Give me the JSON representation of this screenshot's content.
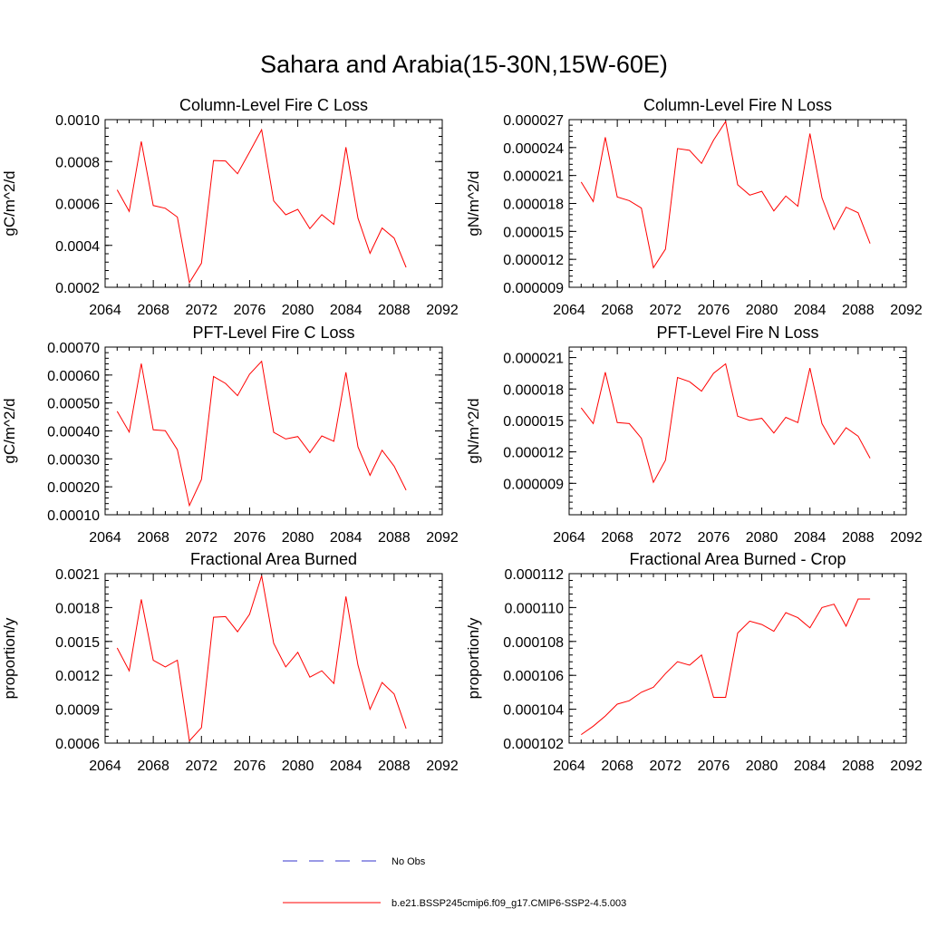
{
  "figure": {
    "title": "Sahara and Arabia(15-30N,15W-60E)"
  },
  "chart_data": [
    {
      "type": "line",
      "title": "Column-Level Fire C Loss",
      "ylabel": "gC/m^2/d",
      "xlim": [
        2064,
        2092
      ],
      "ylim": [
        0.0002,
        0.001
      ],
      "xticks": [
        "2064",
        "2068",
        "2072",
        "2076",
        "2080",
        "2084",
        "2088",
        "2092"
      ],
      "yticks": [
        "0.0002",
        "0.0004",
        "0.0006",
        "0.0008",
        "0.0010"
      ],
      "x": [
        2065,
        2066,
        2067,
        2068,
        2069,
        2070,
        2071,
        2072,
        2073,
        2074,
        2075,
        2076,
        2077,
        2078,
        2079,
        2080,
        2081,
        2082,
        2083,
        2084,
        2085,
        2086,
        2087,
        2088,
        2089
      ],
      "series": [
        {
          "name": "b.e21.BSSP245cmip6.f09_g17.CMIP6-SSP2-4.5.003",
          "color": "#ff0000",
          "values": [
            0.000665,
            0.000562,
            0.000896,
            0.00059,
            0.000577,
            0.000535,
            0.000222,
            0.000315,
            0.000805,
            0.000803,
            0.000742,
            0.000845,
            0.000952,
            0.000612,
            0.000546,
            0.000572,
            0.00048,
            0.000547,
            0.0005,
            0.000868,
            0.00053,
            0.000362,
            0.000483,
            0.000435,
            0.000295
          ]
        }
      ]
    },
    {
      "type": "line",
      "title": "Column-Level Fire N Loss",
      "ylabel": "gN/m^2/d",
      "xlim": [
        2064,
        2092
      ],
      "ylim": [
        9e-06,
        2.7e-05
      ],
      "xticks": [
        "2064",
        "2068",
        "2072",
        "2076",
        "2080",
        "2084",
        "2088",
        "2092"
      ],
      "yticks": [
        "0.000009",
        "0.000012",
        "0.000015",
        "0.000018",
        "0.000021",
        "0.000024",
        "0.000027"
      ],
      "x": [
        2065,
        2066,
        2067,
        2068,
        2069,
        2070,
        2071,
        2072,
        2073,
        2074,
        2075,
        2076,
        2077,
        2078,
        2079,
        2080,
        2081,
        2082,
        2083,
        2084,
        2085,
        2086,
        2087,
        2088,
        2089
      ],
      "series": [
        {
          "name": "b.e21.BSSP245cmip6.f09_g17.CMIP6-SSP2-4.5.003",
          "color": "#ff0000",
          "values": [
            2.03e-05,
            1.82e-05,
            2.51e-05,
            1.87e-05,
            1.83e-05,
            1.75e-05,
            1.11e-05,
            1.31e-05,
            2.39e-05,
            2.37e-05,
            2.23e-05,
            2.48e-05,
            2.68e-05,
            2e-05,
            1.89e-05,
            1.93e-05,
            1.72e-05,
            1.88e-05,
            1.77e-05,
            2.55e-05,
            1.86e-05,
            1.52e-05,
            1.76e-05,
            1.7e-05,
            1.37e-05
          ]
        }
      ]
    },
    {
      "type": "line",
      "title": "PFT-Level Fire C Loss",
      "ylabel": "gC/m^2/d",
      "xlim": [
        2064,
        2092
      ],
      "ylim": [
        0.0001,
        0.0007
      ],
      "xticks": [
        "2064",
        "2068",
        "2072",
        "2076",
        "2080",
        "2084",
        "2088",
        "2092"
      ],
      "yticks": [
        "0.00010",
        "0.00020",
        "0.00030",
        "0.00040",
        "0.00050",
        "0.00060",
        "0.00070"
      ],
      "x": [
        2065,
        2066,
        2067,
        2068,
        2069,
        2070,
        2071,
        2072,
        2073,
        2074,
        2075,
        2076,
        2077,
        2078,
        2079,
        2080,
        2081,
        2082,
        2083,
        2084,
        2085,
        2086,
        2087,
        2088,
        2089
      ],
      "series": [
        {
          "name": "b.e21.BSSP245cmip6.f09_g17.CMIP6-SSP2-4.5.003",
          "color": "#ff0000",
          "values": [
            0.00047,
            0.000396,
            0.000641,
            0.000404,
            0.000401,
            0.000333,
            0.000133,
            0.000226,
            0.000595,
            0.00057,
            0.000526,
            0.000603,
            0.000649,
            0.000395,
            0.000371,
            0.00038,
            0.000322,
            0.000382,
            0.000363,
            0.00061,
            0.000343,
            0.000241,
            0.000331,
            0.000274,
            0.000188
          ]
        }
      ]
    },
    {
      "type": "line",
      "title": "PFT-Level Fire N Loss",
      "ylabel": "gN/m^2/d",
      "xlim": [
        2064,
        2092
      ],
      "ylim": [
        6e-06,
        2.2e-05
      ],
      "xticks": [
        "2064",
        "2068",
        "2072",
        "2076",
        "2080",
        "2084",
        "2088",
        "2092"
      ],
      "yticks": [
        "0.000009",
        "0.000012",
        "0.000015",
        "0.000018",
        "0.000021"
      ],
      "x": [
        2065,
        2066,
        2067,
        2068,
        2069,
        2070,
        2071,
        2072,
        2073,
        2074,
        2075,
        2076,
        2077,
        2078,
        2079,
        2080,
        2081,
        2082,
        2083,
        2084,
        2085,
        2086,
        2087,
        2088,
        2089
      ],
      "series": [
        {
          "name": "b.e21.BSSP245cmip6.f09_g17.CMIP6-SSP2-4.5.003",
          "color": "#ff0000",
          "values": [
            1.62e-05,
            1.47e-05,
            1.96e-05,
            1.48e-05,
            1.47e-05,
            1.33e-05,
            9.1e-06,
            1.12e-05,
            1.91e-05,
            1.87e-05,
            1.78e-05,
            1.95e-05,
            2.04e-05,
            1.54e-05,
            1.5e-05,
            1.52e-05,
            1.38e-05,
            1.53e-05,
            1.48e-05,
            2e-05,
            1.47e-05,
            1.27e-05,
            1.43e-05,
            1.35e-05,
            1.14e-05
          ]
        }
      ]
    },
    {
      "type": "line",
      "title": "Fractional Area Burned",
      "ylabel": "proportion/y",
      "xlim": [
        2064,
        2092
      ],
      "ylim": [
        0.0006,
        0.0021
      ],
      "xticks": [
        "2064",
        "2068",
        "2072",
        "2076",
        "2080",
        "2084",
        "2088",
        "2092"
      ],
      "yticks": [
        "0.0006",
        "0.0009",
        "0.0012",
        "0.0015",
        "0.0018",
        "0.0021"
      ],
      "x": [
        2065,
        2066,
        2067,
        2068,
        2069,
        2070,
        2071,
        2072,
        2073,
        2074,
        2075,
        2076,
        2077,
        2078,
        2079,
        2080,
        2081,
        2082,
        2083,
        2084,
        2085,
        2086,
        2087,
        2088,
        2089
      ],
      "series": [
        {
          "name": "b.e21.BSSP245cmip6.f09_g17.CMIP6-SSP2-4.5.003",
          "color": "#ff0000",
          "values": [
            0.001442,
            0.00124,
            0.001872,
            0.001334,
            0.001275,
            0.001334,
            0.00062,
            0.000737,
            0.001714,
            0.00172,
            0.001586,
            0.001741,
            0.002081,
            0.001484,
            0.001275,
            0.001404,
            0.001184,
            0.00124,
            0.001128,
            0.001898,
            0.001291,
            0.000899,
            0.001137,
            0.001035,
            0.000729
          ]
        }
      ]
    },
    {
      "type": "line",
      "title": "Fractional Area Burned - Crop",
      "ylabel": "proportion/y",
      "xlim": [
        2064,
        2092
      ],
      "ylim": [
        0.000102,
        0.000112
      ],
      "xticks": [
        "2064",
        "2068",
        "2072",
        "2076",
        "2080",
        "2084",
        "2088",
        "2092"
      ],
      "yticks": [
        "0.000102",
        "0.000104",
        "0.000106",
        "0.000108",
        "0.000110",
        "0.000112"
      ],
      "x": [
        2065,
        2066,
        2067,
        2068,
        2069,
        2070,
        2071,
        2072,
        2073,
        2074,
        2075,
        2076,
        2077,
        2078,
        2079,
        2080,
        2081,
        2082,
        2083,
        2084,
        2085,
        2086,
        2087,
        2088,
        2089
      ],
      "series": [
        {
          "name": "b.e21.BSSP245cmip6.f09_g17.CMIP6-SSP2-4.5.003",
          "color": "#ff0000",
          "values": [
            0.0001025,
            0.000103,
            0.0001036,
            0.0001043,
            0.0001045,
            0.000105,
            0.0001053,
            0.0001061,
            0.0001068,
            0.0001066,
            0.0001072,
            0.0001047,
            0.0001047,
            0.0001085,
            0.0001092,
            0.000109,
            0.0001086,
            0.0001097,
            0.0001094,
            0.0001088,
            0.00011,
            0.0001102,
            0.0001089,
            0.0001105,
            0.0001105
          ]
        }
      ]
    }
  ],
  "legend": {
    "placement": "bottom-center",
    "entries": [
      {
        "label": "No Obs",
        "color": "#3333cc",
        "style": "dashed"
      },
      {
        "label": "b.e21.BSSP245cmip6.f09_g17.CMIP6-SSP2-4.5.003",
        "color": "#ff0000",
        "style": "solid"
      }
    ]
  }
}
